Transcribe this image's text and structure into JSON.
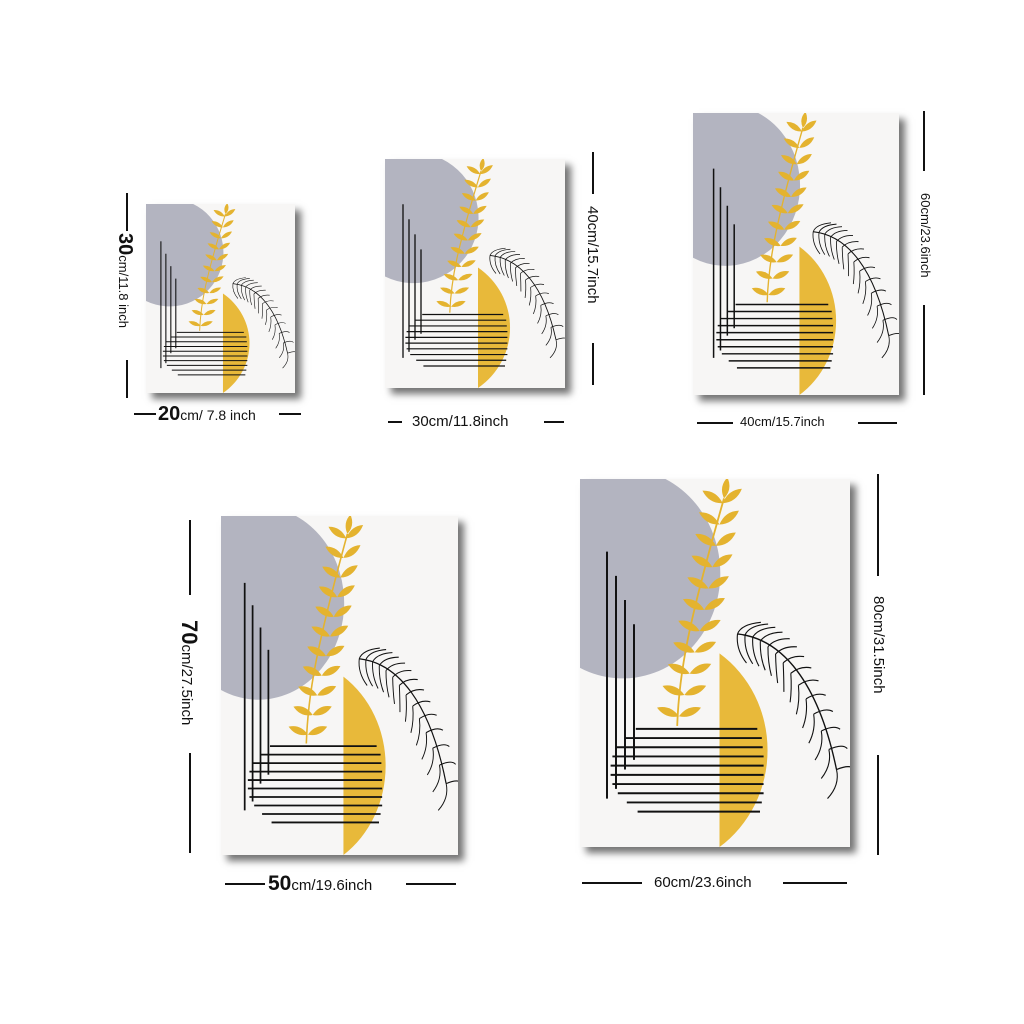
{
  "palette": {
    "background": "#ffffff",
    "canvas": "#f7f6f5",
    "grey": "#b3b4c0",
    "mustard": "#e8b93a",
    "leaf": "#e4b32f",
    "ink": "#111111"
  },
  "sizes": [
    {
      "id": "20x30",
      "width_num": "20",
      "width_unit": "cm/ 7.8 inch",
      "height_num": "30",
      "height_unit": "cm/11.8 inch"
    },
    {
      "id": "30x40",
      "width_label": "30cm/11.8inch",
      "height_label": "40cm/15.7inch"
    },
    {
      "id": "40x60",
      "width_label": "40cm/15.7inch",
      "height_label": "60cm/23.6inch"
    },
    {
      "id": "50x70",
      "width_num": "50",
      "width_unit": "cm/19.6inch",
      "height_num": "70",
      "height_unit": "cm/27.5inch"
    },
    {
      "id": "60x80",
      "width_label": "60cm/23.6inch",
      "height_label": "80cm/31.5inch"
    }
  ]
}
